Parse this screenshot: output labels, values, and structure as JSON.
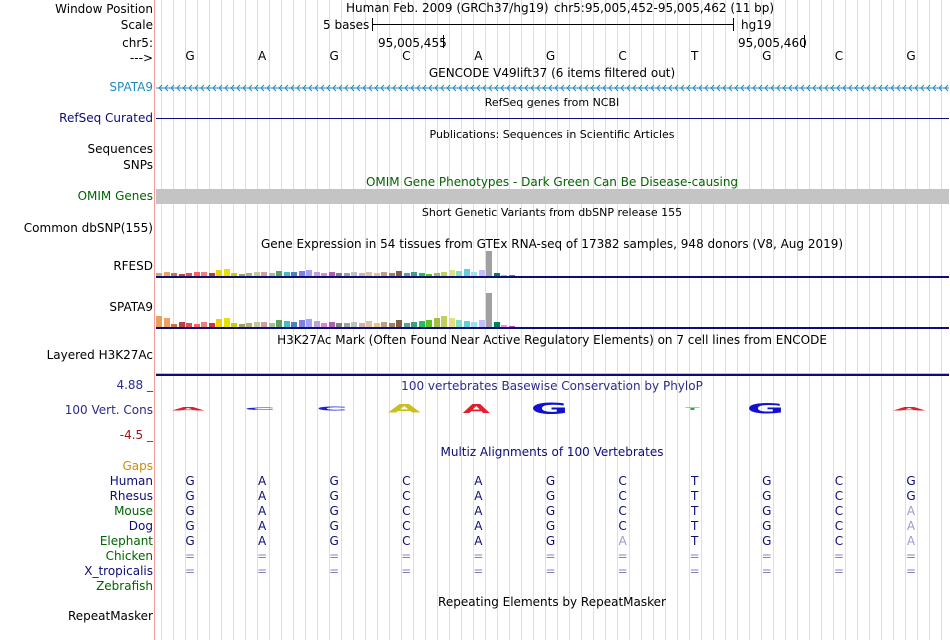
{
  "header": {
    "window_position_label": "Window Position",
    "scale_label": "Scale",
    "chrom_label": "chr5:",
    "strand_label": "--->",
    "assembly_title": "Human Feb. 2009 (GRCh37/hg19)",
    "position": "chr5:95,005,452-95,005,462 (11 bp)",
    "scale_text": "5 bases",
    "assembly_short": "hg19",
    "coord_left": "95,005,455",
    "coord_right": "95,005,460",
    "bases": [
      "G",
      "A",
      "G",
      "C",
      "A",
      "G",
      "C",
      "T",
      "G",
      "C",
      "G"
    ]
  },
  "tracks": {
    "gencode_title": "GENCODE V49lift37 (6 items filtered out)",
    "gene_label": "SPATA9",
    "refseq_title": "RefSeq genes from NCBI",
    "refseq_label": "RefSeq Curated",
    "pubs_title": "Publications: Sequences in Scientific Articles",
    "sequences_label": "Sequences",
    "snps_label": "SNPs",
    "omim_title": "OMIM Gene Phenotypes - Dark Green Can Be Disease-causing",
    "omim_label": "OMIM Genes",
    "dbsnp_title": "Short Genetic Variants from dbSNP release 155",
    "dbsnp_label": "Common dbSNP(155)",
    "gtex_title": "Gene Expression in 54 tissues from GTEx RNA-seq of 17382 samples, 948 donors (V8, Aug 2019)",
    "gtex_gene1": "RFESD",
    "gtex_gene2": "SPATA9",
    "h3k27_title": "H3K27Ac Mark (Often Found Near Active Regulatory Elements) on 7 cell lines from ENCODE",
    "h3k27_label": "Layered H3K27Ac",
    "cons_title": "100 vertebrates Basewise Conservation by PhyloP",
    "cons_label": "100 Vert. Cons",
    "cons_max": "4.88 _",
    "cons_min": "-4.5 _",
    "multiz_title": "Multiz Alignments of 100 Vertebrates",
    "gaps_label": "Gaps",
    "repeat_title": "Repeating Elements by RepeatMasker",
    "repeat_label": "RepeatMasker"
  },
  "alignment": [
    {
      "species": "Human",
      "bases": [
        "G",
        "A",
        "G",
        "C",
        "A",
        "G",
        "C",
        "T",
        "G",
        "C",
        "G"
      ]
    },
    {
      "species": "Rhesus",
      "bases": [
        "G",
        "A",
        "G",
        "C",
        "A",
        "G",
        "C",
        "T",
        "G",
        "C",
        "G"
      ]
    },
    {
      "species": "Mouse",
      "bases": [
        "G",
        "A",
        "G",
        "C",
        "A",
        "G",
        "C",
        "T",
        "G",
        "C",
        "A"
      ]
    },
    {
      "species": "Dog",
      "bases": [
        "G",
        "A",
        "G",
        "C",
        "A",
        "G",
        "C",
        "T",
        "G",
        "C",
        "A"
      ]
    },
    {
      "species": "Elephant",
      "bases": [
        "G",
        "A",
        "G",
        "C",
        "A",
        "G",
        "A",
        "T",
        "G",
        "C",
        "A"
      ]
    },
    {
      "species": "Chicken",
      "bases": [
        "=",
        "=",
        "=",
        "=",
        "=",
        "=",
        "=",
        "=",
        "=",
        "=",
        "="
      ]
    },
    {
      "species": "X_tropicalis",
      "bases": [
        "=",
        "=",
        "=",
        "=",
        "=",
        "=",
        "=",
        "=",
        "=",
        "=",
        "="
      ]
    },
    {
      "species": "Zebrafish",
      "bases": []
    }
  ],
  "conservation_logo": [
    "A",
    "C",
    "C",
    "A",
    "A",
    "G",
    "",
    "T",
    "G",
    "",
    "A"
  ],
  "gtex_values_1": [
    5,
    6,
    5,
    4,
    5,
    6,
    7,
    5,
    9,
    10,
    5,
    4,
    5,
    6,
    6,
    5,
    8,
    7,
    6,
    8,
    9,
    7,
    5,
    6,
    5,
    5,
    6,
    5,
    7,
    5,
    6,
    5,
    8,
    5,
    6,
    5,
    4,
    5,
    6,
    9,
    8,
    10,
    7,
    9,
    34,
    5,
    3,
    2
  ],
  "gtex_values_2": [
    12,
    10,
    4,
    6,
    5,
    4,
    6,
    5,
    9,
    10,
    5,
    4,
    5,
    6,
    6,
    5,
    8,
    7,
    6,
    8,
    9,
    7,
    5,
    6,
    5,
    5,
    6,
    5,
    7,
    5,
    6,
    5,
    8,
    5,
    6,
    7,
    8,
    10,
    12,
    10,
    8,
    7,
    6,
    8,
    34,
    6,
    3,
    2
  ],
  "colors": {
    "divider": "#f29c9c",
    "grid": "#dcdcf4",
    "gencode": "#1e8bbf",
    "navy": "#0c0c78",
    "omim": "#006400",
    "cons_pos": "#2b2b8f",
    "cons_neg": "#a01414",
    "gaps": "#d58a00",
    "species_navy": "#0c0c78",
    "species_green": "#006400"
  }
}
